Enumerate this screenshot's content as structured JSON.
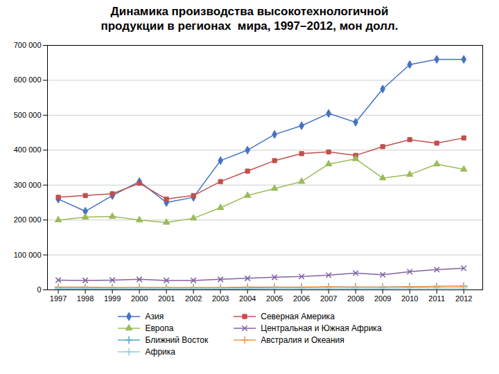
{
  "chart_data": {
    "type": "line",
    "title": "Динамика производства высокотехнологичной\nпродукции в регионах  мира, 1997–2012, мон долл.",
    "x": [
      1997,
      1998,
      1999,
      2000,
      2001,
      2002,
      2003,
      2004,
      2005,
      2006,
      2007,
      2008,
      2009,
      2010,
      2011,
      2012
    ],
    "series": [
      {
        "name": "Азия",
        "color": "#4472C4",
        "marker": "diamond",
        "values": [
          260000,
          225000,
          270000,
          310000,
          250000,
          265000,
          370000,
          400000,
          445000,
          470000,
          505000,
          480000,
          575000,
          645000,
          660000,
          660000
        ]
      },
      {
        "name": "Северная Америка",
        "color": "#C0504D",
        "marker": "square",
        "values": [
          265000,
          270000,
          275000,
          305000,
          260000,
          270000,
          310000,
          340000,
          370000,
          390000,
          395000,
          385000,
          410000,
          430000,
          420000,
          435000
        ]
      },
      {
        "name": "Европа",
        "color": "#9BBB59",
        "marker": "triangle",
        "values": [
          200000,
          208000,
          210000,
          200000,
          193000,
          205000,
          235000,
          270000,
          290000,
          310000,
          360000,
          375000,
          320000,
          330000,
          360000,
          345000
        ]
      },
      {
        "name": "Центральная и Южная Африка",
        "color": "#8064A2",
        "marker": "times",
        "values": [
          28000,
          27000,
          28000,
          30000,
          27000,
          27000,
          30000,
          33000,
          36000,
          38000,
          42000,
          48000,
          43000,
          52000,
          58000,
          62000
        ]
      },
      {
        "name": "Ближний Восток",
        "color": "#4BACC6",
        "marker": "plus",
        "values": [
          5000,
          5000,
          5000,
          5000,
          5000,
          5000,
          5000,
          6000,
          7000,
          7000,
          8000,
          8000,
          8000,
          9000,
          10000,
          11000
        ]
      },
      {
        "name": "Австралия и Океания",
        "color": "#F79646",
        "marker": "plus",
        "values": [
          8000,
          8000,
          7000,
          7000,
          7000,
          7000,
          7000,
          8000,
          8000,
          8000,
          9000,
          8000,
          8000,
          9000,
          10000,
          10000
        ]
      },
      {
        "name": "Африка",
        "color": "#92CDDC",
        "marker": "plus",
        "values": [
          3000,
          3000,
          3000,
          3000,
          3000,
          3000,
          3000,
          3000,
          4000,
          4000,
          4000,
          4000,
          4000,
          5000,
          5000,
          5000
        ]
      }
    ],
    "xlim": [
      1996.6,
      2012.7
    ],
    "xticks": [
      1997,
      1998,
      1999,
      2000,
      2001,
      2002,
      2003,
      2004,
      2005,
      2006,
      2007,
      2008,
      2009,
      2010,
      2011,
      2012
    ],
    "ylim": [
      0,
      700000
    ],
    "yticks": [
      0,
      {
        "value": 100000,
        "label": "100 000"
      },
      {
        "value": 200000,
        "label": "200 000"
      },
      {
        "value": 300000,
        "label": "300 000"
      },
      {
        "value": 400000,
        "label": "400 000"
      },
      {
        "value": 500000,
        "label": "500 000"
      },
      {
        "value": 600000,
        "label": "600 000"
      },
      {
        "value": 700000,
        "label": "700 000"
      }
    ],
    "grid": true,
    "legend": "bottom"
  }
}
